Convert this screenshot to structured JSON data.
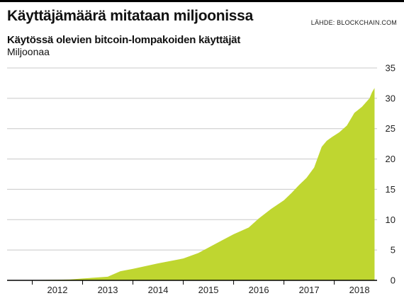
{
  "header": {
    "title": "Käyttäjämäärä mitataan miljoonissa",
    "source": "LÄHDE: BLOCKCHAIN.COM",
    "subtitle": "Käytössä olevien bitcoin-lompakoiden käyttäjät",
    "unit_label": "Miljoonaa"
  },
  "colors": {
    "area_fill": "#bfd630",
    "gridline": "#c8c8c8",
    "baseline": "#000000"
  },
  "chart_data": {
    "type": "area",
    "title": "Käyttäjämäärä mitataan miljoonissa",
    "subtitle": "Käytössä olevien bitcoin-lompakoiden käyttäjät",
    "ylabel": "Miljoonaa",
    "xlabel": "",
    "ylim": [
      0,
      35
    ],
    "xlim": [
      2011.5,
      2018.85
    ],
    "grid": true,
    "y_axis_position": "right",
    "yticks": [
      0,
      5,
      10,
      15,
      20,
      25,
      30,
      35
    ],
    "xtick_labels": [
      "2012",
      "2013",
      "2014",
      "2015",
      "2016",
      "2017",
      "2018"
    ],
    "series": [
      {
        "x": [
          2011.5,
          2012.0,
          2012.5,
          2012.75,
          2013.0,
          2013.5,
          2013.75,
          2014.0,
          2014.5,
          2015.0,
          2015.3,
          2015.5,
          2015.75,
          2016.0,
          2016.3,
          2016.5,
          2016.75,
          2017.0,
          2017.15,
          2017.3,
          2017.45,
          2017.6,
          2017.75,
          2017.85,
          2017.95,
          2018.1,
          2018.25,
          2018.4,
          2018.55,
          2018.7,
          2018.75,
          2018.8
        ],
        "y": [
          0.0,
          0.05,
          0.1,
          0.15,
          0.3,
          0.6,
          1.5,
          1.9,
          2.8,
          3.6,
          4.5,
          5.4,
          6.5,
          7.6,
          8.7,
          10.2,
          11.8,
          13.2,
          14.4,
          15.7,
          16.9,
          18.6,
          22.0,
          23.0,
          23.6,
          24.4,
          25.5,
          27.6,
          28.6,
          30.0,
          31.0,
          31.7
        ]
      }
    ]
  }
}
